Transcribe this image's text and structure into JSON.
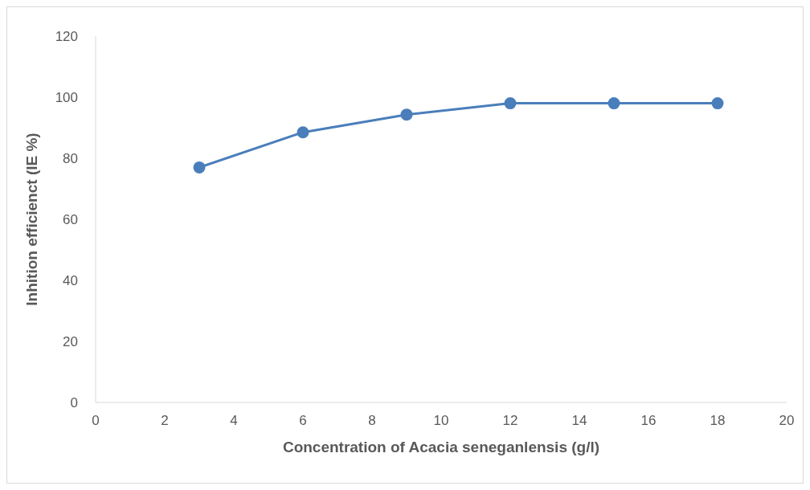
{
  "chart_data": {
    "type": "line",
    "xlabel": "Concentration of  Acacia seneganlensis (g/l)",
    "ylabel": "Inhition efficienct (IE %)",
    "x": [
      3,
      6,
      9,
      12,
      15,
      18
    ],
    "series": [
      {
        "color": "#4a7ebb",
        "values": [
          77,
          88.5,
          94.3,
          98,
          98,
          98
        ]
      }
    ],
    "xlim": [
      0,
      20
    ],
    "xticks": [
      0,
      2,
      4,
      6,
      8,
      10,
      12,
      14,
      16,
      18,
      20
    ],
    "ylim": [
      0,
      120
    ],
    "yticks": [
      0,
      20,
      40,
      60,
      80,
      100,
      120
    ],
    "grid": false,
    "legend": false,
    "marker": "circle",
    "line_style": "solid"
  }
}
